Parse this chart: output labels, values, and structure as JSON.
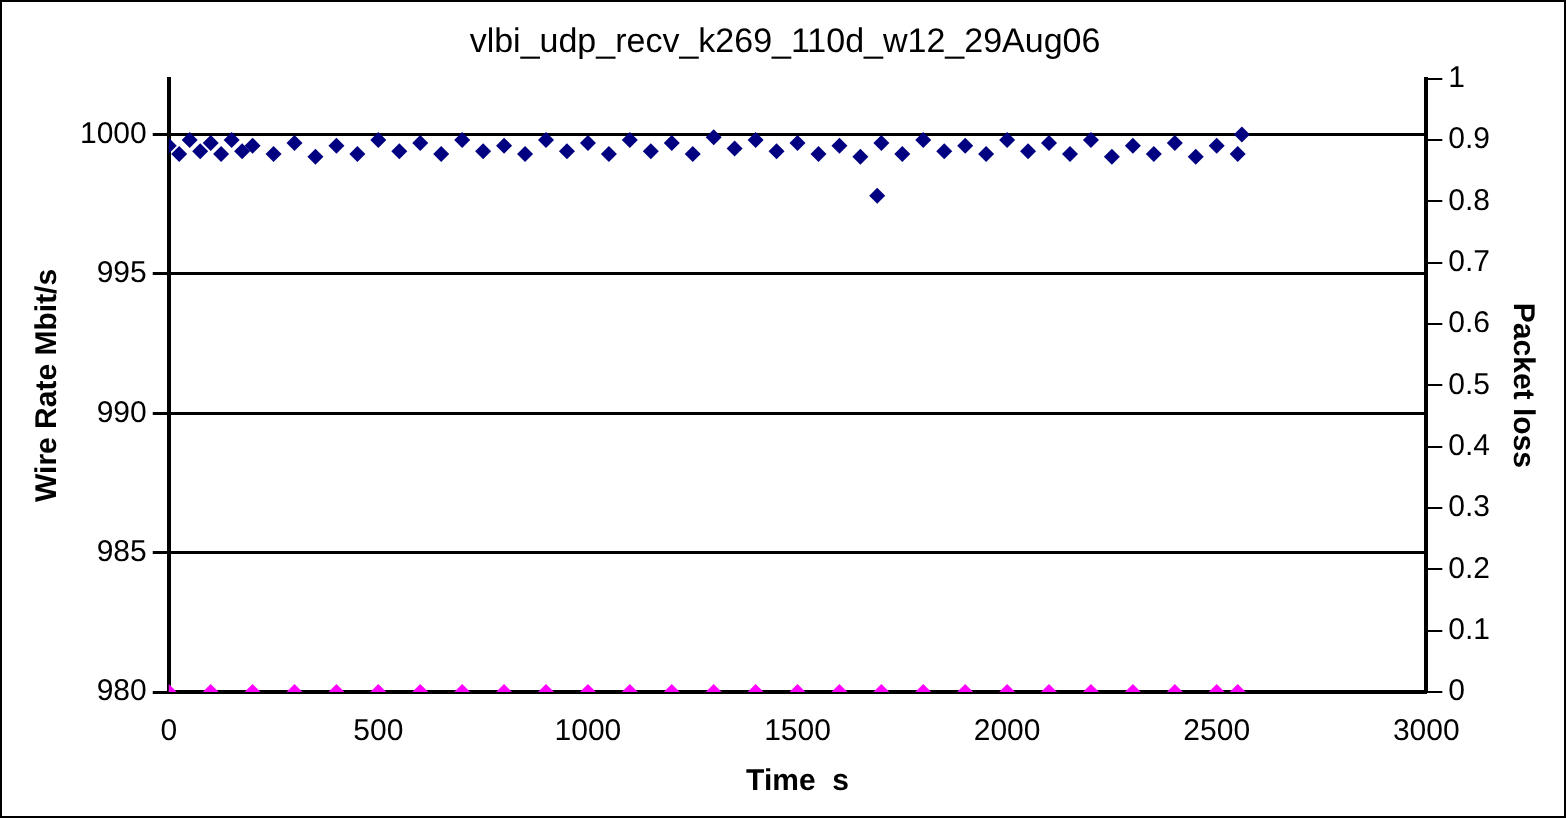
{
  "chart_data": {
    "type": "scatter",
    "title": "vlbi_udp_recv_k269_110d_w12_29Aug06",
    "xlabel": "Time  s",
    "ylabel": "Wire Rate Mbit/s",
    "y2label": "Packet loss",
    "xlim": [
      0,
      3000
    ],
    "xticks": [
      0,
      500,
      1000,
      1500,
      2000,
      2500,
      3000
    ],
    "ylim": [
      980,
      1002
    ],
    "yticks": [
      980,
      985,
      990,
      995,
      1000
    ],
    "y2lim": [
      0,
      1
    ],
    "y2ticks": [
      0,
      0.1,
      0.2,
      0.3,
      0.4,
      0.5,
      0.6,
      0.7,
      0.8,
      0.9,
      1
    ],
    "grid": "y",
    "legend": false,
    "marker": "diamond",
    "series": [
      {
        "color": "#000080",
        "x": [
          0,
          25,
          50,
          75,
          100,
          125,
          150,
          175,
          200,
          250,
          300,
          350,
          400,
          450,
          500,
          550,
          600,
          650,
          700,
          750,
          800,
          850,
          900,
          950,
          1000,
          1050,
          1100,
          1150,
          1200,
          1250,
          1300,
          1350,
          1400,
          1450,
          1500,
          1550,
          1600,
          1650,
          1690,
          1700,
          1750,
          1800,
          1850,
          1900,
          1950,
          2000,
          2050,
          2100,
          2150,
          2200,
          2250,
          2300,
          2350,
          2400,
          2450,
          2500,
          2550,
          2560
        ],
        "values": [
          999.6,
          999.3,
          999.8,
          999.4,
          999.7,
          999.3,
          999.8,
          999.4,
          999.6,
          999.3,
          999.7,
          999.2,
          999.6,
          999.3,
          999.8,
          999.4,
          999.7,
          999.3,
          999.8,
          999.4,
          999.6,
          999.3,
          999.8,
          999.4,
          999.7,
          999.3,
          999.8,
          999.4,
          999.7,
          999.3,
          999.9,
          999.5,
          999.8,
          999.4,
          999.7,
          999.3,
          999.6,
          999.2,
          997.8,
          999.7,
          999.3,
          999.8,
          999.4,
          999.6,
          999.3,
          999.8,
          999.4,
          999.7,
          999.3,
          999.8,
          999.2,
          999.6,
          999.3,
          999.7,
          999.2,
          999.6,
          999.3,
          1000.0
        ]
      },
      {
        "color": "#ff00ff",
        "axis": "y2",
        "x": [
          0,
          100,
          200,
          300,
          400,
          500,
          600,
          700,
          800,
          900,
          1000,
          1100,
          1200,
          1300,
          1400,
          1500,
          1600,
          1700,
          1800,
          1900,
          2000,
          2100,
          2200,
          2300,
          2400,
          2500,
          2550
        ],
        "values": [
          0,
          0,
          0,
          0,
          0,
          0,
          0,
          0,
          0,
          0,
          0,
          0,
          0,
          0,
          0,
          0,
          0,
          0,
          0,
          0,
          0,
          0,
          0,
          0,
          0,
          0,
          0
        ]
      }
    ]
  }
}
